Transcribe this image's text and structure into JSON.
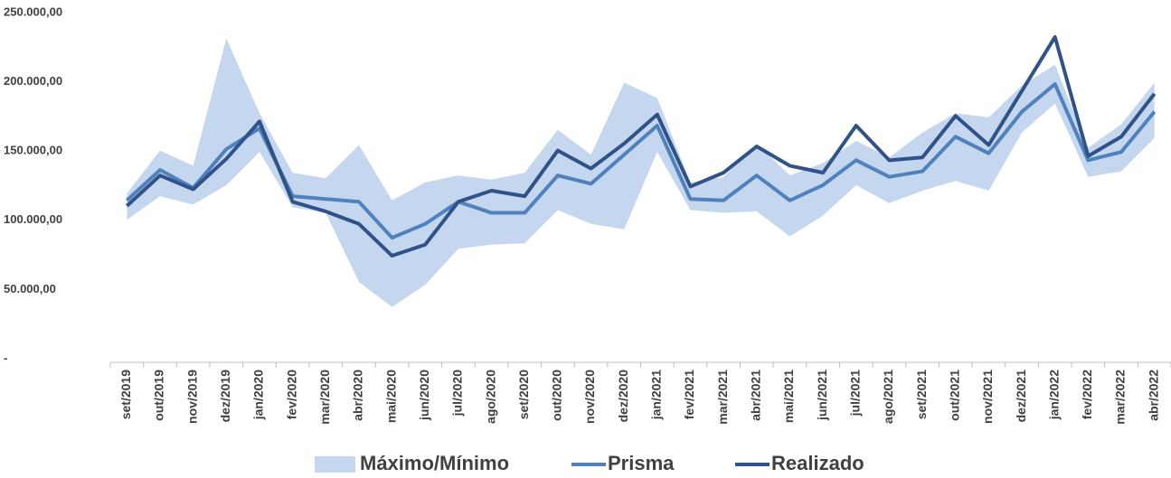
{
  "chart_data": {
    "type": "line",
    "categories": [
      "set/2019",
      "out/2019",
      "nov/2019",
      "dez/2019",
      "jan/2020",
      "fev/2020",
      "mar/2020",
      "abr/2020",
      "mai/2020",
      "jun/2020",
      "jul/2020",
      "ago/2020",
      "set/2020",
      "out/2020",
      "nov/2020",
      "dez/2020",
      "jan/2021",
      "fev/2021",
      "mar/2021",
      "abr/2021",
      "mai/2021",
      "jun/2021",
      "jul/2021",
      "ago/2021",
      "set/2021",
      "out/2021",
      "nov/2021",
      "dez/2021",
      "jan/2022",
      "fev/2022",
      "mar/2022",
      "abr/2022"
    ],
    "ylim": [
      0,
      250000
    ],
    "yticks": [
      {
        "value": 0,
        "label": "-"
      },
      {
        "value": 50000,
        "label": "50.000,00"
      },
      {
        "value": 100000,
        "label": "100.000,00"
      },
      {
        "value": 150000,
        "label": "150.000,00"
      },
      {
        "value": 200000,
        "label": "200.000,00"
      },
      {
        "value": 250000,
        "label": "250.000,00"
      }
    ],
    "band": {
      "name": "Máximo/Mínimo",
      "color": "#c5d7ef",
      "max": [
        122000,
        153000,
        142000,
        234000,
        180000,
        137000,
        133000,
        157000,
        117000,
        130000,
        135000,
        132000,
        137000,
        168000,
        150000,
        202000,
        191000,
        130000,
        134000,
        158000,
        135000,
        144000,
        160000,
        148000,
        166000,
        180000,
        177000,
        200000,
        215000,
        155000,
        172000,
        202000
      ],
      "min": [
        103000,
        120000,
        114000,
        128000,
        152000,
        112000,
        108000,
        58000,
        40000,
        56000,
        82000,
        85000,
        86000,
        110000,
        100000,
        96000,
        152000,
        110000,
        108000,
        109000,
        91000,
        106000,
        128000,
        115000,
        124000,
        131000,
        124000,
        166000,
        187000,
        134000,
        138000,
        162000
      ]
    },
    "series": [
      {
        "name": "Prisma",
        "color": "#4f81bd",
        "values": [
          117000,
          139000,
          126000,
          154000,
          169000,
          120000,
          118000,
          116000,
          90000,
          100000,
          116000,
          108000,
          108000,
          135000,
          129000,
          150000,
          171000,
          118000,
          117000,
          135000,
          117000,
          128000,
          146000,
          134000,
          138000,
          163000,
          151000,
          181000,
          201000,
          146000,
          152000,
          181000
        ]
      },
      {
        "name": "Realizado",
        "color": "#2f5288",
        "values": [
          113000,
          135000,
          125000,
          147000,
          174000,
          116000,
          109000,
          100000,
          77000,
          85000,
          116000,
          124000,
          120000,
          153000,
          140000,
          158000,
          179000,
          127000,
          137000,
          156000,
          142000,
          137000,
          171000,
          146000,
          148000,
          178000,
          157000,
          196000,
          235000,
          149000,
          163000,
          194000
        ]
      }
    ]
  }
}
